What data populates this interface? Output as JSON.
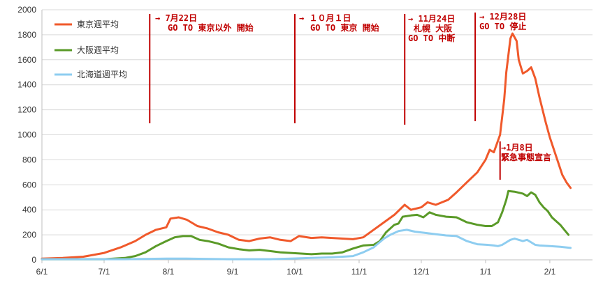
{
  "chart_data": {
    "type": "line",
    "title": "",
    "xlabel": "",
    "ylabel": "",
    "ylim": [
      0,
      2000
    ],
    "y_ticks": [
      0,
      200,
      400,
      600,
      800,
      1000,
      1200,
      1400,
      1600,
      1800,
      2000
    ],
    "x_ticks": [
      "6/1",
      "7/1",
      "8/1",
      "9/1",
      "10/1",
      "11/1",
      "12/1",
      "1/1",
      "2/1"
    ],
    "x_tick_days": [
      0,
      30,
      61,
      92,
      122,
      153,
      183,
      214,
      245
    ],
    "grid": true,
    "legend_position": "top-left",
    "series": [
      {
        "name": "東京週平均",
        "color": "#f0592b",
        "points": [
          [
            0,
            10
          ],
          [
            10,
            15
          ],
          [
            20,
            25
          ],
          [
            30,
            55
          ],
          [
            38,
            100
          ],
          [
            45,
            150
          ],
          [
            50,
            200
          ],
          [
            55,
            240
          ],
          [
            60,
            260
          ],
          [
            62,
            330
          ],
          [
            66,
            340
          ],
          [
            70,
            320
          ],
          [
            75,
            270
          ],
          [
            80,
            250
          ],
          [
            85,
            220
          ],
          [
            90,
            200
          ],
          [
            95,
            160
          ],
          [
            100,
            150
          ],
          [
            105,
            170
          ],
          [
            110,
            180
          ],
          [
            115,
            160
          ],
          [
            120,
            150
          ],
          [
            124,
            190
          ],
          [
            130,
            175
          ],
          [
            135,
            180
          ],
          [
            140,
            175
          ],
          [
            145,
            170
          ],
          [
            150,
            165
          ],
          [
            155,
            180
          ],
          [
            160,
            240
          ],
          [
            165,
            300
          ],
          [
            170,
            360
          ],
          [
            175,
            440
          ],
          [
            178,
            400
          ],
          [
            183,
            420
          ],
          [
            186,
            460
          ],
          [
            190,
            440
          ],
          [
            196,
            480
          ],
          [
            200,
            540
          ],
          [
            205,
            620
          ],
          [
            210,
            700
          ],
          [
            214,
            800
          ],
          [
            216,
            880
          ],
          [
            218,
            860
          ],
          [
            221,
            1000
          ],
          [
            223,
            1280
          ],
          [
            224,
            1500
          ],
          [
            226,
            1770
          ],
          [
            227,
            1810
          ],
          [
            229,
            1750
          ],
          [
            230,
            1600
          ],
          [
            232,
            1490
          ],
          [
            234,
            1510
          ],
          [
            236,
            1540
          ],
          [
            238,
            1450
          ],
          [
            240,
            1300
          ],
          [
            243,
            1100
          ],
          [
            245,
            980
          ],
          [
            247,
            880
          ],
          [
            249,
            780
          ],
          [
            251,
            680
          ],
          [
            253,
            620
          ],
          [
            255,
            575
          ]
        ]
      },
      {
        "name": "大阪週平均",
        "color": "#5a9a28",
        "points": [
          [
            0,
            5
          ],
          [
            20,
            5
          ],
          [
            30,
            5
          ],
          [
            40,
            15
          ],
          [
            45,
            30
          ],
          [
            50,
            60
          ],
          [
            55,
            110
          ],
          [
            60,
            150
          ],
          [
            64,
            180
          ],
          [
            68,
            190
          ],
          [
            72,
            190
          ],
          [
            76,
            160
          ],
          [
            80,
            150
          ],
          [
            85,
            130
          ],
          [
            90,
            100
          ],
          [
            95,
            85
          ],
          [
            100,
            75
          ],
          [
            105,
            80
          ],
          [
            110,
            70
          ],
          [
            115,
            60
          ],
          [
            120,
            55
          ],
          [
            125,
            50
          ],
          [
            130,
            45
          ],
          [
            135,
            50
          ],
          [
            140,
            50
          ],
          [
            145,
            60
          ],
          [
            150,
            90
          ],
          [
            155,
            115
          ],
          [
            160,
            120
          ],
          [
            163,
            150
          ],
          [
            166,
            220
          ],
          [
            170,
            280
          ],
          [
            172,
            290
          ],
          [
            174,
            345
          ],
          [
            178,
            355
          ],
          [
            181,
            360
          ],
          [
            184,
            340
          ],
          [
            187,
            380
          ],
          [
            190,
            360
          ],
          [
            195,
            345
          ],
          [
            200,
            340
          ],
          [
            205,
            300
          ],
          [
            210,
            280
          ],
          [
            214,
            270
          ],
          [
            217,
            270
          ],
          [
            220,
            300
          ],
          [
            222,
            380
          ],
          [
            224,
            480
          ],
          [
            225,
            550
          ],
          [
            228,
            545
          ],
          [
            232,
            530
          ],
          [
            234,
            510
          ],
          [
            236,
            540
          ],
          [
            238,
            520
          ],
          [
            240,
            460
          ],
          [
            242,
            420
          ],
          [
            244,
            390
          ],
          [
            246,
            340
          ],
          [
            248,
            310
          ],
          [
            250,
            280
          ],
          [
            252,
            240
          ],
          [
            254,
            200
          ]
        ]
      },
      {
        "name": "北海道週平均",
        "color": "#8ecdf0",
        "points": [
          [
            0,
            5
          ],
          [
            20,
            5
          ],
          [
            40,
            5
          ],
          [
            60,
            10
          ],
          [
            70,
            10
          ],
          [
            90,
            5
          ],
          [
            110,
            5
          ],
          [
            120,
            10
          ],
          [
            130,
            15
          ],
          [
            140,
            20
          ],
          [
            150,
            30
          ],
          [
            155,
            60
          ],
          [
            160,
            100
          ],
          [
            165,
            170
          ],
          [
            168,
            200
          ],
          [
            172,
            230
          ],
          [
            176,
            240
          ],
          [
            180,
            225
          ],
          [
            185,
            215
          ],
          [
            190,
            205
          ],
          [
            195,
            195
          ],
          [
            200,
            190
          ],
          [
            205,
            150
          ],
          [
            210,
            125
          ],
          [
            215,
            120
          ],
          [
            218,
            115
          ],
          [
            220,
            110
          ],
          [
            222,
            120
          ],
          [
            224,
            140
          ],
          [
            226,
            160
          ],
          [
            228,
            170
          ],
          [
            230,
            160
          ],
          [
            232,
            150
          ],
          [
            234,
            160
          ],
          [
            236,
            140
          ],
          [
            238,
            120
          ],
          [
            240,
            115
          ],
          [
            245,
            110
          ],
          [
            250,
            105
          ],
          [
            255,
            95
          ]
        ]
      }
    ],
    "annotations": [
      {
        "day": 52,
        "lines": [
          "→ 7月22日",
          "GO TO 東京以外 開始"
        ]
      },
      {
        "day": 122,
        "lines": [
          "→ １０月１日",
          "GO TO 東京 開始"
        ]
      },
      {
        "day": 175,
        "lines": [
          "→ 11月24日",
          "札幌 大阪",
          "GO TO 中断"
        ]
      },
      {
        "day": 209,
        "lines": [
          "→ 12月28日",
          "GO TO 停止"
        ]
      },
      {
        "day": 221,
        "lines": [
          "→1月8日",
          "緊急事態宣言"
        ]
      }
    ]
  }
}
